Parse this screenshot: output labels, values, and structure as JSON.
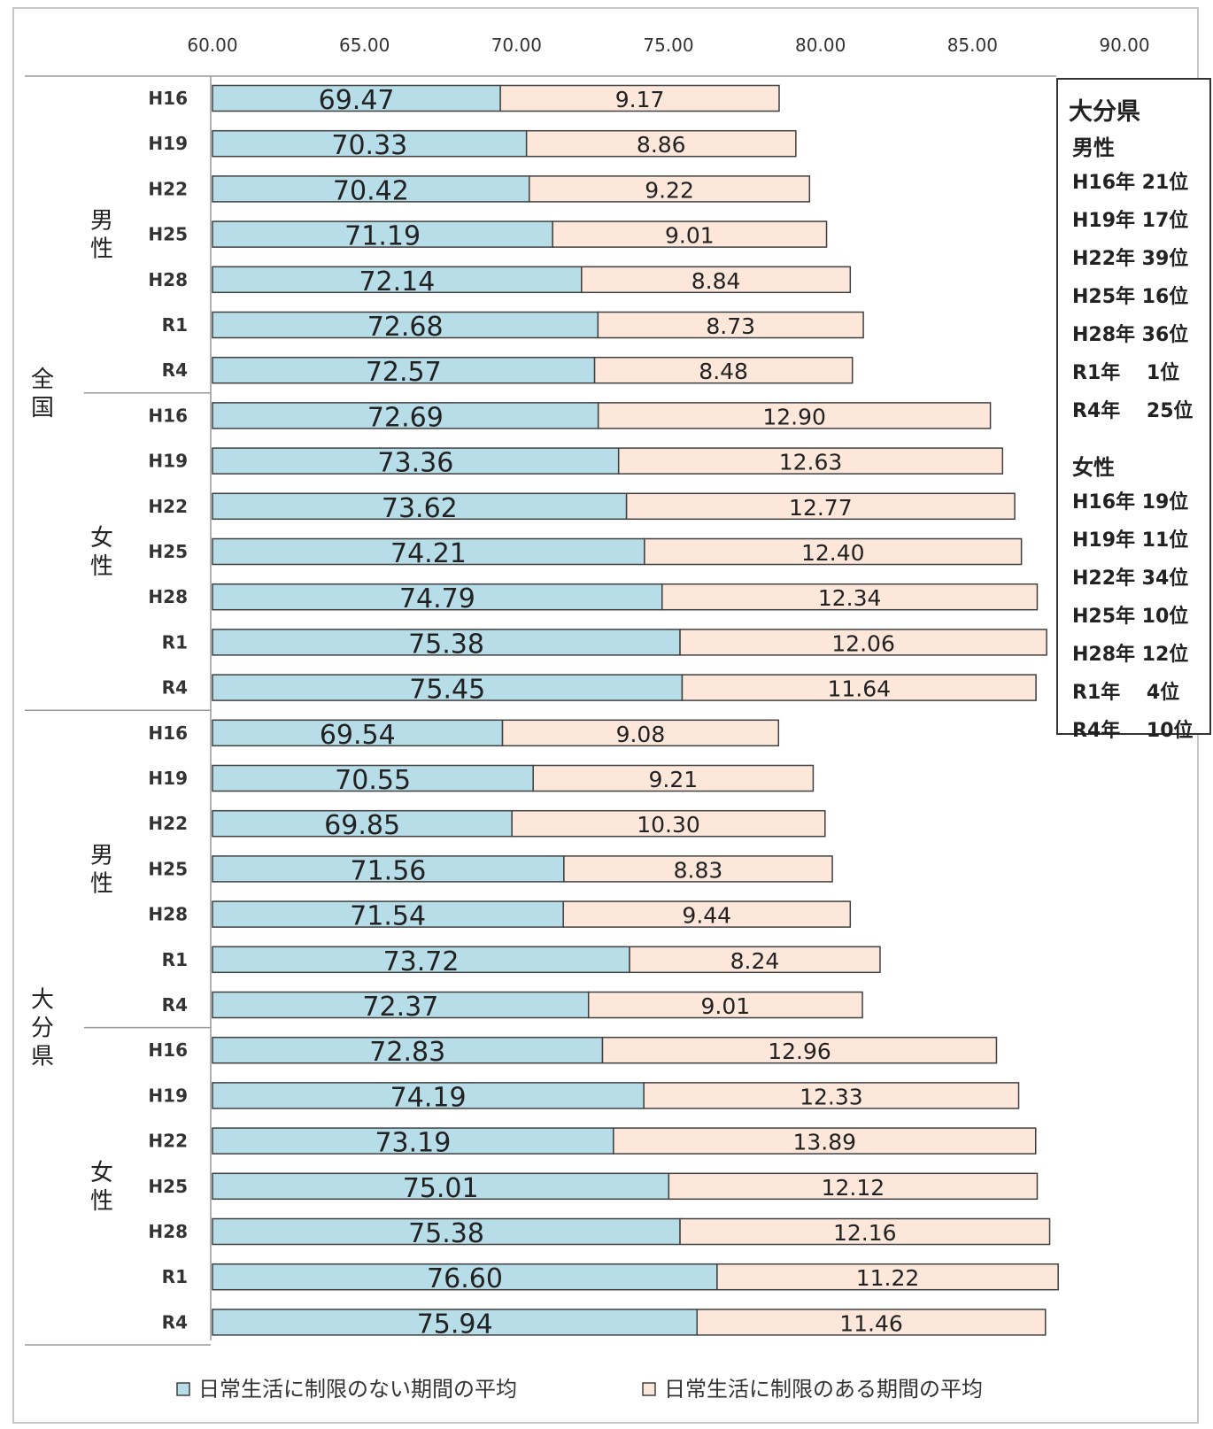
{
  "chart_data": {
    "type": "bar",
    "stacked": true,
    "orientation": "horizontal",
    "xlim": [
      60,
      90
    ],
    "x_ticks": [
      "60.00",
      "65.00",
      "70.00",
      "75.00",
      "80.00",
      "85.00",
      "90.00"
    ],
    "x_tick_values": [
      60,
      65,
      70,
      75,
      80,
      85,
      90
    ],
    "series_names": [
      "日常生活に制限のない期間の平均",
      "日常生活に制限のある期間の平均"
    ],
    "colors": {
      "healthy": "#b7dde8",
      "limited": "#fde7db",
      "outline": "#404040"
    },
    "groups": [
      {
        "region": "全国",
        "subgroups": [
          {
            "sex": "男性",
            "rows": [
              {
                "year": "H16",
                "healthy": 69.47,
                "healthy_label": "69.47",
                "limited": 9.17,
                "limited_label": "9.17"
              },
              {
                "year": "H19",
                "healthy": 70.33,
                "healthy_label": "70.33",
                "limited": 8.86,
                "limited_label": "8.86"
              },
              {
                "year": "H22",
                "healthy": 70.42,
                "healthy_label": "70.42",
                "limited": 9.22,
                "limited_label": "9.22"
              },
              {
                "year": "H25",
                "healthy": 71.19,
                "healthy_label": "71.19",
                "limited": 9.01,
                "limited_label": "9.01"
              },
              {
                "year": "H28",
                "healthy": 72.14,
                "healthy_label": "72.14",
                "limited": 8.84,
                "limited_label": "8.84"
              },
              {
                "year": "R1",
                "healthy": 72.68,
                "healthy_label": "72.68",
                "limited": 8.73,
                "limited_label": "8.73"
              },
              {
                "year": "R4",
                "healthy": 72.57,
                "healthy_label": "72.57",
                "limited": 8.48,
                "limited_label": "8.48"
              }
            ]
          },
          {
            "sex": "女性",
            "rows": [
              {
                "year": "H16",
                "healthy": 72.69,
                "healthy_label": "72.69",
                "limited": 12.9,
                "limited_label": "12.90"
              },
              {
                "year": "H19",
                "healthy": 73.36,
                "healthy_label": "73.36",
                "limited": 12.63,
                "limited_label": "12.63"
              },
              {
                "year": "H22",
                "healthy": 73.62,
                "healthy_label": "73.62",
                "limited": 12.77,
                "limited_label": "12.77"
              },
              {
                "year": "H25",
                "healthy": 74.21,
                "healthy_label": "74.21",
                "limited": 12.4,
                "limited_label": "12.40"
              },
              {
                "year": "H28",
                "healthy": 74.79,
                "healthy_label": "74.79",
                "limited": 12.34,
                "limited_label": "12.34"
              },
              {
                "year": "R1",
                "healthy": 75.38,
                "healthy_label": "75.38",
                "limited": 12.06,
                "limited_label": "12.06"
              },
              {
                "year": "R4",
                "healthy": 75.45,
                "healthy_label": "75.45",
                "limited": 11.64,
                "limited_label": "11.64"
              }
            ]
          }
        ]
      },
      {
        "region": "大分県",
        "subgroups": [
          {
            "sex": "男性",
            "rows": [
              {
                "year": "H16",
                "healthy": 69.54,
                "healthy_label": "69.54",
                "limited": 9.08,
                "limited_label": "9.08"
              },
              {
                "year": "H19",
                "healthy": 70.55,
                "healthy_label": "70.55",
                "limited": 9.21,
                "limited_label": "9.21"
              },
              {
                "year": "H22",
                "healthy": 69.85,
                "healthy_label": "69.85",
                "limited": 10.3,
                "limited_label": "10.30"
              },
              {
                "year": "H25",
                "healthy": 71.56,
                "healthy_label": "71.56",
                "limited": 8.83,
                "limited_label": "8.83"
              },
              {
                "year": "H28",
                "healthy": 71.54,
                "healthy_label": "71.54",
                "limited": 9.44,
                "limited_label": "9.44"
              },
              {
                "year": "R1",
                "healthy": 73.72,
                "healthy_label": "73.72",
                "limited": 8.24,
                "limited_label": "8.24"
              },
              {
                "year": "R4",
                "healthy": 72.37,
                "healthy_label": "72.37",
                "limited": 9.01,
                "limited_label": "9.01"
              }
            ]
          },
          {
            "sex": "女性",
            "rows": [
              {
                "year": "H16",
                "healthy": 72.83,
                "healthy_label": "72.83",
                "limited": 12.96,
                "limited_label": "12.96"
              },
              {
                "year": "H19",
                "healthy": 74.19,
                "healthy_label": "74.19",
                "limited": 12.33,
                "limited_label": "12.33"
              },
              {
                "year": "H22",
                "healthy": 73.19,
                "healthy_label": "73.19",
                "limited": 13.89,
                "limited_label": "13.89"
              },
              {
                "year": "H25",
                "healthy": 75.01,
                "healthy_label": "75.01",
                "limited": 12.12,
                "limited_label": "12.12"
              },
              {
                "year": "H28",
                "healthy": 75.38,
                "healthy_label": "75.38",
                "limited": 12.16,
                "limited_label": "12.16"
              },
              {
                "year": "R1",
                "healthy": 76.6,
                "healthy_label": "76.60",
                "limited": 11.22,
                "limited_label": "11.22"
              },
              {
                "year": "R4",
                "healthy": 75.94,
                "healthy_label": "75.94",
                "limited": 11.46,
                "limited_label": "11.46"
              }
            ]
          }
        ]
      }
    ],
    "legend": {
      "position": "bottom",
      "items": [
        "日常生活に制限のない期間の平均",
        "日常生活に制限のある期間の平均"
      ]
    }
  },
  "rank_box": {
    "title": "大分県",
    "male": {
      "label": "男性",
      "rows": [
        "H16年 21位",
        "H19年 17位",
        "H22年 39位",
        "H25年 16位",
        "H28年 36位",
        "R1年 　1位",
        "R4年 　25位"
      ]
    },
    "female": {
      "label": "女性",
      "rows": [
        "H16年 19位",
        "H19年 11位",
        "H22年 34位",
        "H25年 10位",
        "H28年 12位",
        "R1年 　4位",
        "R4年 　10位"
      ]
    }
  }
}
